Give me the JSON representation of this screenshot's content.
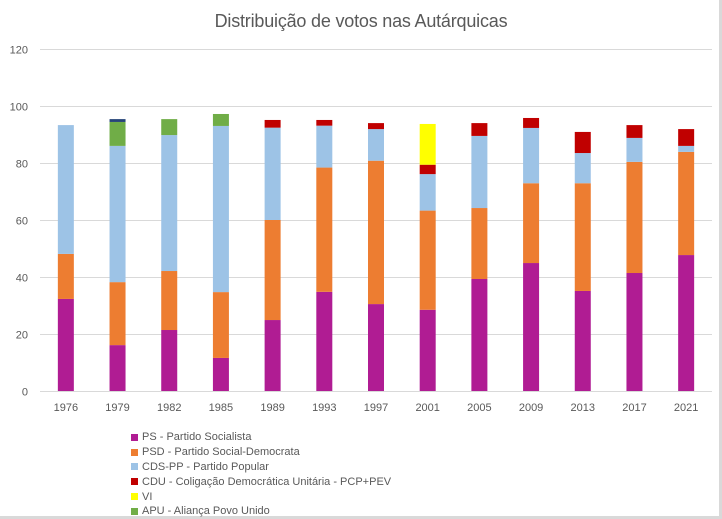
{
  "chart_data": {
    "type": "bar",
    "stacked": true,
    "title": "Distribuição de votos nas Autárquicas",
    "xlabel": "",
    "ylabel": "",
    "ylim": [
      0,
      120
    ],
    "yticks": [
      0,
      20,
      40,
      60,
      80,
      100,
      120
    ],
    "grid": true,
    "legend_position": "bottom-left",
    "categories": [
      "1976",
      "1979",
      "1982",
      "1985",
      "1989",
      "1993",
      "1997",
      "2001",
      "2005",
      "2009",
      "2013",
      "2017",
      "2021"
    ],
    "series": [
      {
        "name": "PS - Partido Socialista",
        "color": "#b01c93",
        "values": [
          32.3,
          16.1,
          21.4,
          11.6,
          24.9,
          34.8,
          30.5,
          28.5,
          39.3,
          44.9,
          35.1,
          41.4,
          47.7
        ]
      },
      {
        "name": "PSD - Partido Social-Democrata",
        "color": "#ed7d31",
        "values": [
          15.8,
          22.1,
          20.7,
          23.1,
          35.1,
          43.6,
          50.3,
          34.8,
          24.9,
          28.0,
          37.8,
          39.0,
          36.2
        ]
      },
      {
        "name": "CDS-PP - Partido Popular",
        "color": "#9dc3e6",
        "values": [
          45.2,
          47.8,
          47.7,
          58.3,
          32.4,
          14.7,
          11.1,
          12.8,
          25.3,
          19.4,
          10.6,
          8.4,
          2.1
        ]
      },
      {
        "name": "CDU - Coligação Democrática Unitária - PCP+PEV",
        "color": "#c00000",
        "values": [
          0,
          0,
          0,
          0,
          2.7,
          2.0,
          2.1,
          3.3,
          4.5,
          3.5,
          7.4,
          4.5,
          5.9
        ]
      },
      {
        "name": "VI",
        "color": "#ffff00",
        "values": [
          0,
          0,
          0,
          0,
          0,
          0,
          0,
          14.3,
          0,
          0,
          0,
          0,
          0
        ]
      },
      {
        "name": "APU - Aliança Povo Unido",
        "color": "#70ad47",
        "values": [
          0,
          8.4,
          5.6,
          4.2,
          0,
          0,
          0,
          0,
          0,
          0,
          0,
          0,
          0
        ]
      },
      {
        "name": "",
        "color": "#264478",
        "in_legend": false,
        "values": [
          0,
          1.0,
          0,
          0,
          0,
          0,
          0,
          0,
          0,
          0,
          0,
          0,
          0
        ]
      }
    ]
  }
}
